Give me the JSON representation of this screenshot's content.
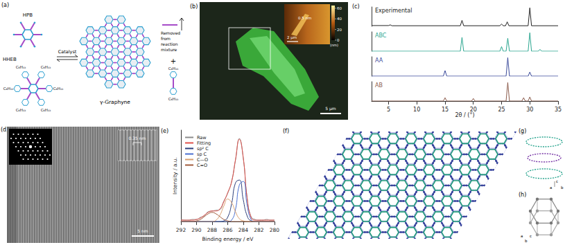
{
  "panels": {
    "a": {
      "label": "(a)",
      "monomers": [
        "HPB",
        "HHEB"
      ],
      "side_chain": "C₆H₁₃",
      "catalyst": "Catalyst",
      "product": "γ-Graphyne",
      "byproduct_note": "Removed from reaction mixture",
      "plus": "+"
    },
    "b": {
      "label": "(b)",
      "scale_bar": "5 μm",
      "inset_scale_bar": "2 μm",
      "inset_height": "0.5 nm",
      "colorbar": {
        "range": [
          0,
          65
        ],
        "ticks": [
          0,
          20,
          40,
          60
        ],
        "unit": "(nm)"
      }
    },
    "c": {
      "label": "(c)"
    },
    "d": {
      "label": "(d)",
      "lattice_spacing": "0.35 nm",
      "scale_bar": "5 nm"
    },
    "e": {
      "label": "(e)"
    },
    "f": {
      "label": "(f)"
    },
    "g": {
      "label": "(g)",
      "axes": [
        "c",
        "a",
        "b"
      ]
    },
    "h": {
      "label": "(h)",
      "axes": [
        "a",
        "b",
        "c"
      ]
    }
  },
  "chart_data": [
    {
      "type": "line",
      "x_label": "2θ / (°)",
      "xlim": [
        2,
        35
      ],
      "xticks": [
        5,
        10,
        15,
        20,
        25,
        30,
        35
      ],
      "ylim": [
        0,
        105
      ],
      "tick_labels": "x",
      "grid": false,
      "series": [
        {
          "name": "Experimental",
          "color": "#222222",
          "x": [
            2,
            5,
            5.3,
            5.6,
            17.7,
            18,
            18.3,
            24.7,
            25,
            25.3,
            25.7,
            26,
            26.3,
            29.7,
            30,
            30.3,
            35
          ],
          "values": [
            4,
            4,
            8,
            3,
            3,
            32,
            3,
            3,
            12,
            3,
            3,
            24,
            3,
            3,
            100,
            3,
            3
          ]
        },
        {
          "name": "ABC",
          "color": "#2aa58f",
          "x": [
            2,
            17.7,
            18,
            18.3,
            24.7,
            25,
            25.3,
            25.8,
            26.1,
            26.4,
            29.7,
            30,
            30.3,
            31.5,
            31.8,
            32.1,
            35
          ],
          "values": [
            0,
            0,
            75,
            0,
            0,
            25,
            0,
            0,
            70,
            0,
            0,
            100,
            0,
            0,
            10,
            0,
            0
          ]
        },
        {
          "name": "AA",
          "color": "#3a4a9a",
          "x": [
            2,
            14.7,
            15,
            15.3,
            25.8,
            26.1,
            26.4,
            29.7,
            30,
            30.3,
            35
          ],
          "values": [
            0,
            0,
            30,
            0,
            0,
            100,
            0,
            0,
            22,
            0,
            0
          ]
        },
        {
          "name": "AB",
          "color": "#8a5a4a",
          "x": [
            2,
            14.7,
            15,
            15.3,
            19.7,
            20,
            20.3,
            25.8,
            26.1,
            26.4,
            28.6,
            28.9,
            29.2,
            29.7,
            30,
            30.3,
            35
          ],
          "values": [
            0,
            0,
            18,
            0,
            0,
            14,
            0,
            0,
            100,
            0,
            0,
            18,
            0,
            0,
            22,
            0,
            0
          ]
        }
      ]
    },
    {
      "type": "line",
      "x_label": "Binding energy / eV",
      "y_label": "Intensity / a.u.",
      "xlim": [
        292,
        280
      ],
      "xticks": [
        292,
        290,
        288,
        286,
        284,
        282,
        280
      ],
      "ylim": [
        0,
        1.3
      ],
      "tick_labels": "x",
      "grid": false,
      "legend": "upper left",
      "x": [
        292,
        291.5,
        291,
        290.5,
        290,
        289.5,
        289,
        288.5,
        288,
        287.5,
        287,
        286.5,
        286,
        285.5,
        285,
        284.5,
        284,
        283.5,
        283,
        282.5,
        282,
        281.5,
        281,
        280.5,
        280
      ],
      "series": [
        {
          "name": "Raw",
          "color": "#8c8c8c",
          "values": [
            0.03,
            0.02,
            0.02,
            0.03,
            0.03,
            0.06,
            0.08,
            0.14,
            0.15,
            0.16,
            0.17,
            0.29,
            0.4,
            0.57,
            0.87,
            1.18,
            0.9,
            0.34,
            0.07,
            0.03,
            0.02,
            0.02,
            0.03,
            0.02,
            0.02
          ]
        },
        {
          "name": "Fitting",
          "color": "#e0504a",
          "values": [
            0.02,
            0.02,
            0.02,
            0.02,
            0.03,
            0.05,
            0.09,
            0.13,
            0.15,
            0.15,
            0.18,
            0.28,
            0.41,
            0.56,
            0.88,
            1.17,
            0.91,
            0.33,
            0.06,
            0.02,
            0.02,
            0.02,
            0.02,
            0.02,
            0.02
          ]
        },
        {
          "name": "sp² C",
          "color": "#2c3e7a",
          "values": [
            0,
            0,
            0,
            0,
            0,
            0,
            0,
            0,
            0,
            0,
            0,
            0.01,
            0.06,
            0.25,
            0.55,
            0.59,
            0.31,
            0.08,
            0.01,
            0,
            0,
            0,
            0,
            0,
            0
          ]
        },
        {
          "name": "sp C",
          "color": "#4a6fd0",
          "values": [
            0,
            0,
            0,
            0,
            0,
            0,
            0,
            0,
            0,
            0,
            0,
            0,
            0,
            0.02,
            0.17,
            0.52,
            0.57,
            0.23,
            0.03,
            0,
            0,
            0,
            0,
            0,
            0
          ]
        },
        {
          "name": "C—O",
          "color": "#d9a070",
          "values": [
            0,
            0,
            0,
            0,
            0,
            0,
            0,
            0,
            0,
            0.02,
            0.09,
            0.22,
            0.32,
            0.27,
            0.14,
            0.04,
            0.01,
            0,
            0,
            0,
            0,
            0,
            0,
            0,
            0
          ]
        },
        {
          "name": "C=O",
          "color": "#a05a3a",
          "values": [
            0,
            0,
            0,
            0,
            0.01,
            0.03,
            0.07,
            0.11,
            0.13,
            0.11,
            0.07,
            0.03,
            0.01,
            0,
            0,
            0,
            0,
            0,
            0,
            0,
            0,
            0,
            0,
            0,
            0
          ]
        }
      ]
    }
  ]
}
